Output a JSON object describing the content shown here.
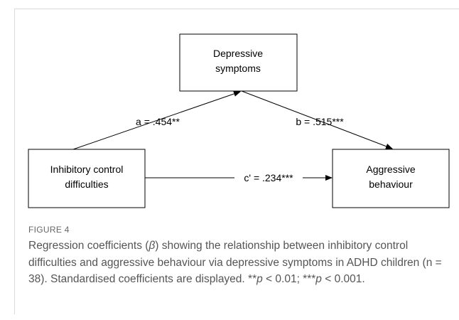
{
  "nodes": [
    {
      "label": [
        "Depressive",
        "symptoms"
      ]
    },
    {
      "label": [
        "Inhibitory control",
        "difficulties"
      ]
    },
    {
      "label": [
        "Aggressive",
        "behaviour"
      ]
    }
  ],
  "edges": [
    {
      "label": "a = .454**"
    },
    {
      "label": "b = .515***"
    },
    {
      "label": "c' = .234***"
    }
  ],
  "caption": {
    "figure": "FIGURE 4",
    "runs": [
      {
        "text": "Regression coefficients ("
      },
      {
        "text": "β",
        "italic": true
      },
      {
        "text": ") showing the relationship between inhibitory control difficulties and aggressive behaviour via depressive symptoms in ADHD children (n = 38). Standardised coefficients are displayed. **"
      },
      {
        "text": "p",
        "italic": true
      },
      {
        "text": " < 0.01; ***"
      },
      {
        "text": "p",
        "italic": true
      },
      {
        "text": " < 0.001."
      }
    ]
  }
}
